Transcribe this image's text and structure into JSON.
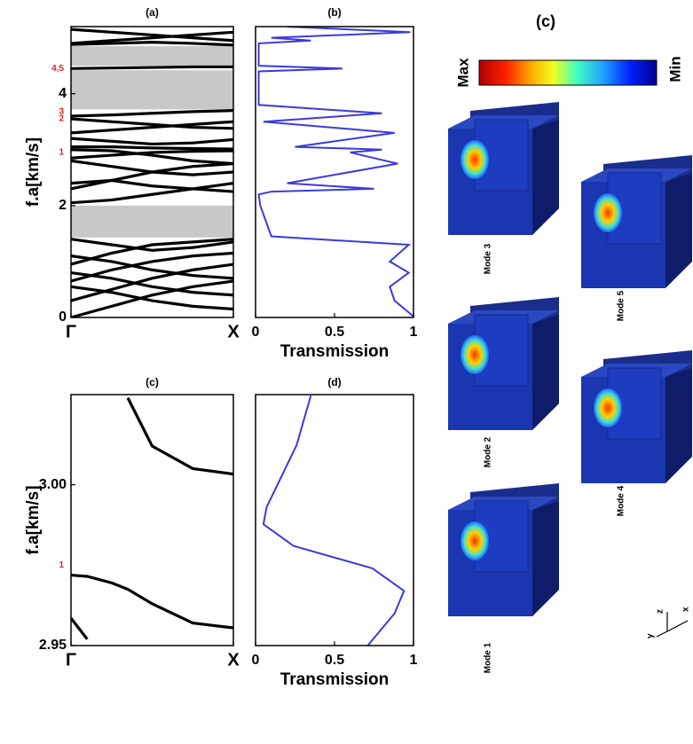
{
  "chart_data": [
    {
      "type": "line",
      "title": "(a)",
      "ylabel": "f.a[km/s]",
      "xlim": [
        0,
        1
      ],
      "xticks": [
        {
          "value": 0,
          "label": "Γ"
        },
        {
          "value": 1,
          "label": "X"
        }
      ],
      "ylim": [
        0,
        5.2
      ],
      "yticks": [
        0,
        2,
        4
      ],
      "x": [
        0,
        0.25,
        0.5,
        0.75,
        1
      ],
      "shaded_ranges": [
        [
          1.43,
          2.0
        ],
        [
          3.72,
          4.42
        ],
        [
          4.5,
          4.85
        ]
      ],
      "shade_color": "#c8c8c8",
      "annotation_color": "#e02020",
      "annotations": [
        {
          "text": "4,5",
          "y": 4.45
        },
        {
          "text": "3",
          "y": 3.68
        },
        {
          "text": "2",
          "y": 3.55
        },
        {
          "text": "1",
          "y": 2.95
        }
      ],
      "series": [
        {
          "color": "#000000",
          "values": [
            0,
            0.2,
            0.4,
            0.55,
            0.65
          ]
        },
        {
          "color": "#000000",
          "values": [
            0.55,
            0.45,
            0.3,
            0.2,
            0.15
          ]
        },
        {
          "color": "#000000",
          "values": [
            0.3,
            0.5,
            0.7,
            0.85,
            0.95
          ]
        },
        {
          "color": "#000000",
          "values": [
            0.8,
            0.7,
            0.55,
            0.45,
            0.4
          ]
        },
        {
          "color": "#000000",
          "values": [
            0.65,
            0.85,
            1.0,
            1.1,
            1.15
          ]
        },
        {
          "color": "#000000",
          "values": [
            1.1,
            1.0,
            0.85,
            0.75,
            0.7
          ]
        },
        {
          "color": "#000000",
          "values": [
            0.95,
            1.15,
            1.3,
            1.35,
            1.4
          ]
        },
        {
          "color": "#000000",
          "values": [
            1.4,
            1.3,
            1.2,
            1.25,
            1.35
          ]
        },
        {
          "color": "#000000",
          "values": [
            2.05,
            2.1,
            2.2,
            2.3,
            2.4
          ]
        },
        {
          "color": "#000000",
          "values": [
            2.4,
            2.45,
            2.35,
            2.3,
            2.25
          ]
        },
        {
          "color": "#000000",
          "values": [
            2.3,
            2.45,
            2.6,
            2.7,
            2.75
          ]
        },
        {
          "color": "#000000",
          "values": [
            2.8,
            2.7,
            2.6,
            2.55,
            2.6
          ]
        },
        {
          "color": "#000000",
          "values": [
            2.85,
            2.9,
            2.95,
            2.97,
            2.98
          ]
        },
        {
          "color": "#000000",
          "values": [
            3.0,
            2.98,
            2.9,
            2.8,
            2.75
          ]
        },
        {
          "color": "#000000",
          "values": [
            3.05,
            3.05,
            3.03,
            3.02,
            3.01
          ]
        },
        {
          "color": "#000000",
          "values": [
            3.2,
            3.15,
            3.1,
            3.12,
            3.18
          ]
        },
        {
          "color": "#000000",
          "values": [
            3.3,
            3.35,
            3.4,
            3.45,
            3.5
          ]
        },
        {
          "color": "#000000",
          "values": [
            3.55,
            3.5,
            3.45,
            3.4,
            3.38
          ]
        },
        {
          "color": "#000000",
          "values": [
            3.6,
            3.62,
            3.65,
            3.68,
            3.7
          ]
        },
        {
          "color": "#000000",
          "values": [
            4.45,
            4.46,
            4.47,
            4.48,
            4.48
          ]
        },
        {
          "color": "#000000",
          "values": [
            4.88,
            4.9,
            4.92,
            4.9,
            4.87
          ]
        },
        {
          "color": "#000000",
          "values": [
            4.9,
            4.95,
            5.0,
            5.05,
            5.1
          ]
        },
        {
          "color": "#000000",
          "values": [
            5.15,
            5.1,
            5.05,
            5.0,
            4.95
          ]
        }
      ]
    },
    {
      "type": "line",
      "title": "(b)",
      "xlabel": "Transmission",
      "xlim": [
        0,
        1
      ],
      "xticks": [
        0,
        0.5,
        1
      ],
      "ylim": [
        0,
        5.2
      ],
      "series": [
        {
          "color": "#3a3adc",
          "x": [
            1,
            0.88,
            0.85,
            0.97,
            0.85,
            0.97,
            0.1,
            0.03,
            0.02,
            0.1,
            0.75,
            0.2,
            0.9,
            0.6,
            0.8,
            0.25,
            0.88,
            0.05,
            0.8,
            0.02,
            0.02,
            0.55,
            0.02,
            0.02,
            0.35,
            0.1,
            0.98,
            0.2
          ],
          "values": [
            0.02,
            0.3,
            0.55,
            0.8,
            1.0,
            1.3,
            1.45,
            2.0,
            2.2,
            2.25,
            2.3,
            2.4,
            2.75,
            2.95,
            3.0,
            3.05,
            3.3,
            3.5,
            3.65,
            3.8,
            4.4,
            4.45,
            4.5,
            4.9,
            4.95,
            5.0,
            5.1,
            5.2
          ]
        }
      ]
    },
    {
      "type": "line",
      "title": "(c)",
      "ylabel": "f.a[km/s]",
      "xlim": [
        0,
        1
      ],
      "xticks": [
        {
          "value": 0,
          "label": "Γ"
        },
        {
          "value": 1,
          "label": "X"
        }
      ],
      "ylim": [
        2.95,
        3.028
      ],
      "yticks": [
        2.95,
        {
          "value": 3,
          "label": "3.00"
        }
      ],
      "x": [
        0,
        0.1,
        0.25,
        0.35,
        0.5,
        0.75,
        1
      ],
      "annotation_color": "#e02020",
      "annotations": [
        {
          "text": "1",
          "y": 2.975
        }
      ],
      "series": [
        {
          "color": "#000000",
          "values": [
            null,
            null,
            null,
            3.027,
            3.012,
            3.005,
            3.0033
          ]
        },
        {
          "color": "#000000",
          "values": [
            2.9719,
            2.9715,
            2.9695,
            2.9675,
            2.963,
            2.957,
            2.9555
          ]
        },
        {
          "color": "#000000",
          "values": [
            2.9585,
            2.952,
            null,
            null,
            null,
            null,
            null
          ]
        }
      ]
    },
    {
      "type": "line",
      "title": "(d)",
      "xlabel": "Transmission",
      "xlim": [
        0,
        1
      ],
      "xticks": [
        0,
        0.5,
        1
      ],
      "ylim": [
        2.95,
        3.028
      ],
      "series": [
        {
          "color": "#3a3adc",
          "x": [
            0.35,
            0.26,
            0.07,
            0.05,
            0.24,
            0.74,
            0.94,
            0.88,
            0.71
          ],
          "values": [
            3.0277,
            3.0123,
            2.993,
            2.9877,
            2.981,
            2.974,
            2.967,
            2.96,
            2.95
          ]
        }
      ]
    }
  ],
  "mode_panel": {
    "title": "(c)",
    "colorbar_max": "Max",
    "colorbar_min": "Min",
    "modes": [
      "Mode 3",
      "Mode 5",
      "Mode 2",
      "Mode 4",
      "Mode 1"
    ],
    "axes": [
      "z",
      "y",
      "x"
    ]
  }
}
